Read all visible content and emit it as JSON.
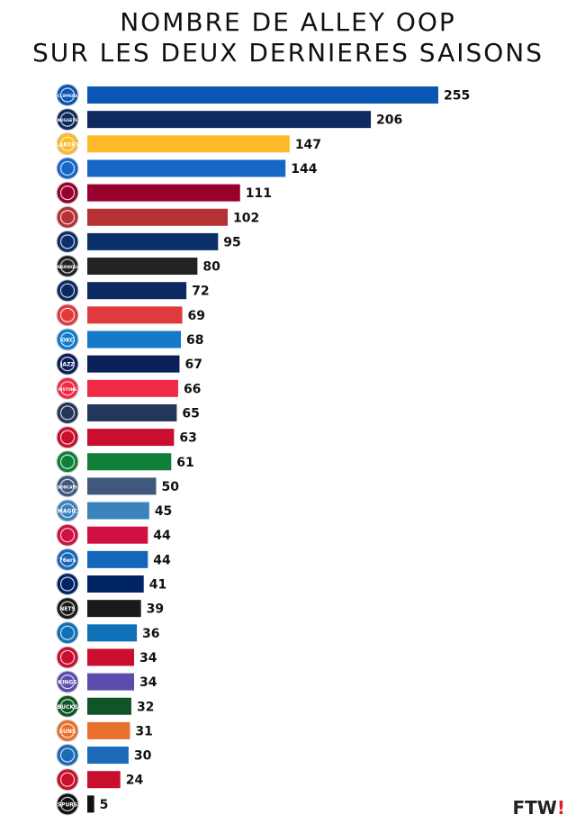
{
  "title_lines": [
    "NOMBRE DE ALLEY OOP",
    "SUR LES DEUX DERNIERES SAISONS"
  ],
  "brand": {
    "text": "FTW",
    "accent": "!"
  },
  "chart_data": {
    "type": "bar",
    "orientation": "horizontal",
    "title": "NOMBRE DE ALLEY OOP SUR LES DEUX DERNIERES SAISONS",
    "categories": [
      "Clippers",
      "Nuggets",
      "Lakers",
      "Knicks",
      "Heat",
      "Trail Blazers",
      "Wizards",
      "Timberwolves",
      "Pelicans",
      "Hawks",
      "Thunder",
      "Jazz",
      "Pistons",
      "Grizzlies",
      "Raptors",
      "Celtics",
      "Bobcats",
      "Magic",
      "Rockets",
      "76ers",
      "Pacers",
      "Nets",
      "Warriors",
      "Cavaliers",
      "Kings",
      "Bucks",
      "Suns",
      "Mavericks",
      "Bulls",
      "Spurs"
    ],
    "values": [
      255,
      206,
      147,
      144,
      111,
      102,
      95,
      80,
      72,
      69,
      68,
      67,
      66,
      65,
      63,
      61,
      50,
      45,
      44,
      44,
      41,
      39,
      36,
      34,
      34,
      32,
      31,
      30,
      24,
      5
    ],
    "colors": [
      "#0a56b3",
      "#0f2a5f",
      "#fdb927",
      "#1866c8",
      "#98002e",
      "#b53136",
      "#0a2f6b",
      "#222222",
      "#0c2a62",
      "#e03a3e",
      "#1479c9",
      "#0b1f58",
      "#ee2a45",
      "#23375b",
      "#c8102e",
      "#0f7f3a",
      "#3f587c",
      "#3c82bd",
      "#ce1141",
      "#1466b9",
      "#002566",
      "#1a1a1a",
      "#1071b8",
      "#c8102e",
      "#5a4cad",
      "#0f5528",
      "#e86f2c",
      "#1c6bb8",
      "#c8102e",
      "#111111"
    ],
    "logo_icons": [
      "clippers-logo-icon",
      "nuggets-logo-icon",
      "lakers-logo-icon",
      "knicks-logo-icon",
      "heat-logo-icon",
      "trail-blazers-logo-icon",
      "wizards-logo-icon",
      "timberwolves-logo-icon",
      "pelicans-logo-icon",
      "hawks-logo-icon",
      "thunder-logo-icon",
      "jazz-logo-icon",
      "pistons-logo-icon",
      "grizzlies-logo-icon",
      "raptors-logo-icon",
      "celtics-logo-icon",
      "bobcats-logo-icon",
      "magic-logo-icon",
      "rockets-logo-icon",
      "76ers-logo-icon",
      "pacers-logo-icon",
      "nets-logo-icon",
      "warriors-logo-icon",
      "cavaliers-logo-icon",
      "kings-logo-icon",
      "bucks-logo-icon",
      "suns-logo-icon",
      "mavericks-logo-icon",
      "bulls-logo-icon",
      "spurs-logo-icon"
    ],
    "logo_text": [
      "CLIPPERS",
      "NUGGETS",
      "LAKERS",
      "",
      "",
      "",
      "",
      "TIMBERWOLVES",
      "",
      "",
      "OKC",
      "JAZZ",
      "PISTONS",
      "",
      "",
      "",
      "BOBCATS",
      "MAGIC",
      "",
      "76ers",
      "",
      "NETS",
      "",
      "",
      "KINGS",
      "BUCKS",
      "SUNS",
      "",
      "",
      "SPURS"
    ],
    "xlabel": "",
    "ylabel": "",
    "xlim": [
      0,
      255
    ],
    "grid": false,
    "legend": "none"
  }
}
